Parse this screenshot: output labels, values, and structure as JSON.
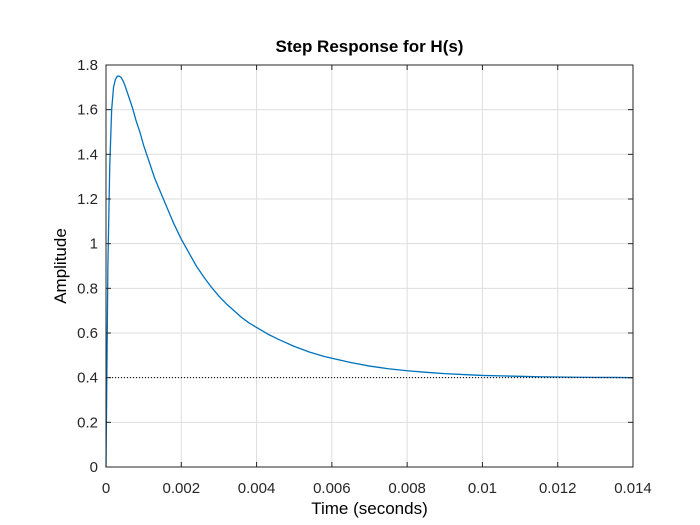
{
  "chart_data": {
    "type": "line",
    "title": "Step Response for H(s)",
    "xlabel": "Time (seconds)",
    "ylabel": "Amplitude",
    "xlim": [
      0,
      0.014
    ],
    "ylim": [
      0,
      1.8
    ],
    "grid": true,
    "x_ticks": [
      "0",
      "0.002",
      "0.004",
      "0.006",
      "0.008",
      "0.01",
      "0.012",
      "0.014"
    ],
    "y_ticks": [
      "0",
      "0.2",
      "0.4",
      "0.6",
      "0.8",
      "1",
      "1.2",
      "1.4",
      "1.6",
      "1.8"
    ],
    "x_tick_values": [
      0,
      0.002,
      0.004,
      0.006,
      0.008,
      0.01,
      0.012,
      0.014
    ],
    "y_tick_values": [
      0,
      0.2,
      0.4,
      0.6,
      0.8,
      1.0,
      1.2,
      1.4,
      1.6,
      1.8
    ],
    "series": [
      {
        "color": "#0072BD",
        "style": "solid",
        "x": [
          0,
          5e-05,
          0.0001,
          0.00015,
          0.0002,
          0.00025,
          0.0003,
          0.00035,
          0.0004,
          0.00045,
          0.0005,
          0.0006,
          0.0007,
          0.0008,
          0.0009,
          0.001,
          0.0011,
          0.0012,
          0.0013,
          0.0014,
          0.0015,
          0.0016,
          0.0018,
          0.002,
          0.0022,
          0.0024,
          0.0026,
          0.0028,
          0.003,
          0.0032,
          0.0034,
          0.0036,
          0.0038,
          0.004,
          0.0043,
          0.0046,
          0.005,
          0.0054,
          0.0058,
          0.006,
          0.0065,
          0.007,
          0.0075,
          0.008,
          0.0085,
          0.009,
          0.0095,
          0.01,
          0.0105,
          0.011,
          0.0115,
          0.012,
          0.0125,
          0.013,
          0.0135,
          0.014
        ],
        "y": [
          0,
          0.9,
          1.35,
          1.6,
          1.7,
          1.735,
          1.75,
          1.75,
          1.745,
          1.73,
          1.71,
          1.66,
          1.61,
          1.55,
          1.5,
          1.44,
          1.39,
          1.34,
          1.29,
          1.25,
          1.21,
          1.17,
          1.09,
          1.02,
          0.96,
          0.9,
          0.85,
          0.805,
          0.765,
          0.73,
          0.7,
          0.67,
          0.645,
          0.625,
          0.595,
          0.57,
          0.54,
          0.515,
          0.495,
          0.487,
          0.468,
          0.452,
          0.44,
          0.431,
          0.424,
          0.418,
          0.414,
          0.41,
          0.408,
          0.406,
          0.404,
          0.403,
          0.402,
          0.401,
          0.401,
          0.4
        ]
      },
      {
        "color": "#000000",
        "style": "dotted",
        "x": [
          0,
          0.014
        ],
        "y": [
          0.4,
          0.4
        ]
      }
    ]
  }
}
